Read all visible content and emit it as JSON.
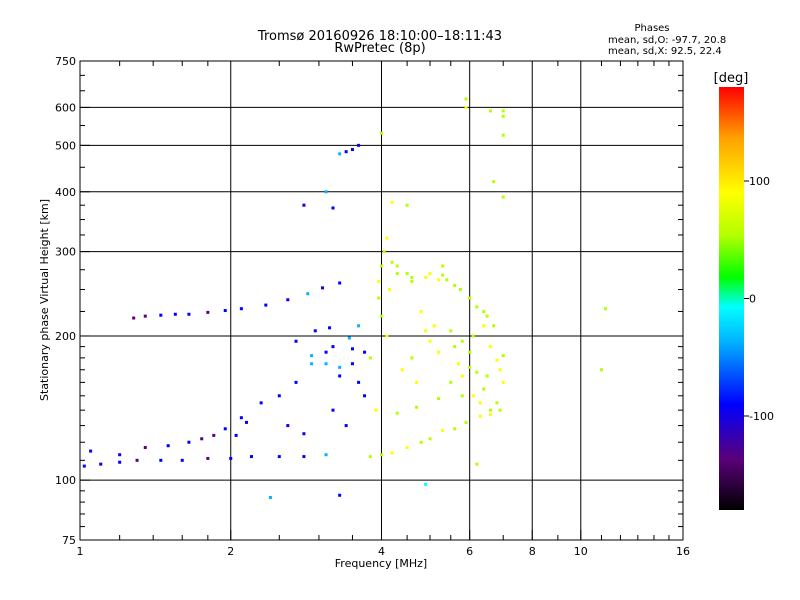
{
  "chart_data": {
    "type": "scatter",
    "title": "Tromsø 20160926 18:10:00–18:11:43",
    "subtitle": "RwPretec (8p)",
    "xlabel": "Frequency [MHz]",
    "ylabel": "Stationary phase Virtual Height [km]",
    "x_scale": "log",
    "y_scale": "log",
    "xlim": [
      1,
      16
    ],
    "ylim": [
      75,
      750
    ],
    "x_ticks": [
      {
        "value": 1,
        "label": "1"
      },
      {
        "value": 2,
        "label": "2"
      },
      {
        "value": 4,
        "label": "4"
      },
      {
        "value": 6,
        "label": "6"
      },
      {
        "value": 8,
        "label": "8"
      },
      {
        "value": 10,
        "label": "10"
      },
      {
        "value": 16,
        "label": "16"
      }
    ],
    "x_grid": [
      2,
      4,
      6,
      8,
      10
    ],
    "y_ticks": [
      {
        "value": 75,
        "label": "75"
      },
      {
        "value": 100,
        "label": "100"
      },
      {
        "value": 200,
        "label": "200"
      },
      {
        "value": 300,
        "label": "300"
      },
      {
        "value": 400,
        "label": "400"
      },
      {
        "value": 500,
        "label": "500"
      },
      {
        "value": 600,
        "label": "600"
      },
      {
        "value": 750,
        "label": "750"
      }
    ],
    "y_grid": [
      100,
      200,
      300,
      400,
      500,
      600
    ],
    "grid": true,
    "stats": {
      "heading": "Phases",
      "line1": "mean, sd,O: -97.7, 20.8",
      "line2": "mean, sd,X:  92.5, 22.4"
    },
    "colorbar": {
      "label": "[deg]",
      "range": [
        -180,
        180
      ],
      "ticks": [
        {
          "value": 100,
          "label": "100"
        },
        {
          "value": 0,
          "label": "0"
        },
        {
          "value": -100,
          "label": "-100"
        }
      ],
      "stops": [
        "#000000",
        "#5a0078",
        "#0000ff",
        "#00b4ff",
        "#00ffff",
        "#00ff00",
        "#b4ff00",
        "#ffff00",
        "#ffa000",
        "#ff0000"
      ]
    },
    "series": [
      {
        "values": [
          [
            1.02,
            107
          ],
          [
            1.1,
            108
          ],
          [
            1.2,
            109
          ],
          [
            1.3,
            110
          ],
          [
            1.45,
            110
          ],
          [
            1.6,
            110
          ],
          [
            1.8,
            111
          ],
          [
            2.0,
            111
          ],
          [
            2.2,
            112
          ],
          [
            2.5,
            112
          ],
          [
            2.8,
            112
          ],
          [
            3.1,
            113
          ],
          [
            1.05,
            115
          ],
          [
            1.2,
            113
          ],
          [
            1.35,
            117
          ],
          [
            1.5,
            118
          ],
          [
            1.65,
            120
          ],
          [
            1.75,
            122
          ],
          [
            1.85,
            124
          ],
          [
            1.95,
            128
          ],
          [
            2.05,
            124
          ],
          [
            2.15,
            132
          ],
          [
            1.28,
            218
          ],
          [
            1.35,
            220
          ],
          [
            1.45,
            221
          ],
          [
            1.55,
            222
          ],
          [
            1.65,
            222
          ],
          [
            1.8,
            224
          ],
          [
            1.95,
            226
          ],
          [
            2.1,
            228
          ],
          [
            2.35,
            232
          ],
          [
            2.6,
            238
          ],
          [
            2.85,
            245
          ],
          [
            3.05,
            252
          ],
          [
            3.3,
            258
          ],
          [
            2.1,
            135
          ],
          [
            2.3,
            145
          ],
          [
            2.5,
            150
          ],
          [
            2.7,
            160
          ],
          [
            2.9,
            175
          ],
          [
            3.1,
            185
          ],
          [
            3.3,
            165
          ],
          [
            3.5,
            175
          ],
          [
            3.7,
            150
          ],
          [
            3.9,
            140
          ],
          [
            2.6,
            130
          ],
          [
            2.8,
            125
          ],
          [
            3.2,
            140
          ],
          [
            3.4,
            130
          ],
          [
            3.6,
            160
          ],
          [
            2.9,
            182
          ],
          [
            3.1,
            175
          ],
          [
            3.3,
            172
          ],
          [
            3.5,
            188
          ],
          [
            3.8,
            180
          ],
          [
            3.2,
            190
          ],
          [
            3.45,
            198
          ],
          [
            3.7,
            185
          ],
          [
            2.7,
            195
          ],
          [
            2.95,
            205
          ],
          [
            3.15,
            208
          ],
          [
            3.6,
            210
          ],
          [
            3.95,
            240
          ],
          [
            3.95,
            260
          ],
          [
            4.0,
            280
          ],
          [
            4.05,
            300
          ],
          [
            4.1,
            320
          ],
          [
            4.15,
            250
          ],
          [
            4.0,
            220
          ],
          [
            4.1,
            200
          ],
          [
            4.3,
            270
          ],
          [
            4.6,
            265
          ],
          [
            5.0,
            270
          ],
          [
            5.3,
            268
          ],
          [
            5.4,
            262
          ],
          [
            4.8,
            225
          ],
          [
            4.9,
            205
          ],
          [
            5.0,
            195
          ],
          [
            5.1,
            210
          ],
          [
            4.6,
            180
          ],
          [
            4.4,
            170
          ],
          [
            4.7,
            160
          ],
          [
            5.2,
            185
          ],
          [
            5.6,
            190
          ],
          [
            5.5,
            205
          ],
          [
            3.3,
            480
          ],
          [
            3.4,
            485
          ],
          [
            3.5,
            490
          ],
          [
            3.6,
            500
          ],
          [
            4.0,
            530
          ],
          [
            4.2,
            380
          ],
          [
            4.5,
            375
          ],
          [
            3.1,
            400
          ],
          [
            3.2,
            370
          ],
          [
            2.8,
            375
          ],
          [
            5.9,
            600
          ],
          [
            5.9,
            625
          ],
          [
            6.6,
            590
          ],
          [
            7.0,
            590
          ],
          [
            7.0,
            575
          ],
          [
            7.0,
            525
          ],
          [
            6.7,
            420
          ],
          [
            7.0,
            390
          ],
          [
            4.5,
            270
          ],
          [
            4.3,
            280
          ],
          [
            4.2,
            285
          ],
          [
            5.3,
            280
          ],
          [
            5.2,
            262
          ],
          [
            4.6,
            260
          ],
          [
            4.9,
            265
          ],
          [
            3.9,
            140
          ],
          [
            4.3,
            138
          ],
          [
            4.7,
            142
          ],
          [
            5.2,
            148
          ],
          [
            5.8,
            150
          ],
          [
            6.3,
            145
          ],
          [
            6.6,
            140
          ],
          [
            6.8,
            145
          ],
          [
            6.0,
            172
          ],
          [
            6.2,
            168
          ],
          [
            6.5,
            165
          ],
          [
            6.8,
            178
          ],
          [
            7.0,
            182
          ],
          [
            5.8,
            195
          ],
          [
            6.1,
            200
          ],
          [
            6.4,
            210
          ],
          [
            6.6,
            190
          ],
          [
            7.0,
            160
          ],
          [
            6.9,
            170
          ],
          [
            3.8,
            112
          ],
          [
            4.0,
            113
          ],
          [
            4.2,
            114
          ],
          [
            4.5,
            117
          ],
          [
            4.8,
            120
          ],
          [
            5.0,
            122
          ],
          [
            5.3,
            127
          ],
          [
            5.6,
            128
          ],
          [
            5.9,
            132
          ],
          [
            6.3,
            136
          ],
          [
            6.6,
            137
          ],
          [
            6.9,
            140
          ],
          [
            5.7,
            175
          ],
          [
            5.5,
            160
          ],
          [
            5.8,
            165
          ],
          [
            6.1,
            150
          ],
          [
            6.4,
            155
          ],
          [
            6.0,
            185
          ],
          [
            5.6,
            255
          ],
          [
            5.75,
            250
          ],
          [
            6.0,
            240
          ],
          [
            6.2,
            230
          ],
          [
            6.4,
            225
          ],
          [
            6.5,
            220
          ],
          [
            6.7,
            210
          ],
          [
            2.4,
            92
          ],
          [
            3.3,
            93
          ],
          [
            4.9,
            98
          ],
          [
            6.2,
            108
          ],
          [
            11.0,
            170
          ],
          [
            11.2,
            228
          ]
        ]
      }
    ]
  }
}
